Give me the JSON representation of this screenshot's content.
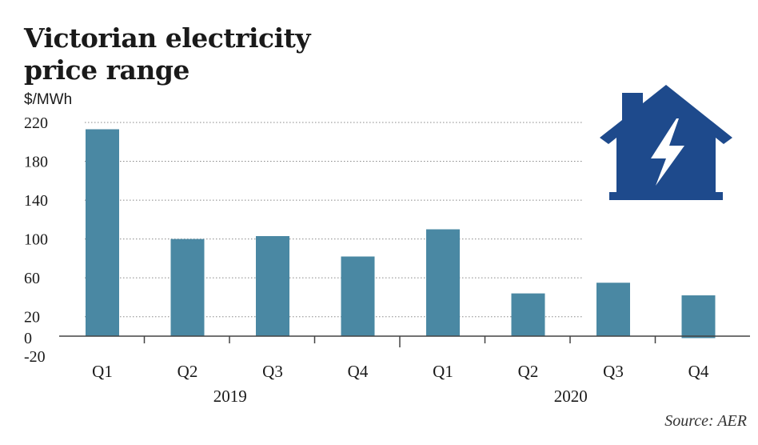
{
  "chart_data": {
    "type": "bar",
    "title_lines": [
      "Victorian electricity",
      "price range"
    ],
    "ylabel": "$/MWh",
    "source": "Source: AER",
    "categories": [
      "Q1",
      "Q2",
      "Q3",
      "Q4",
      "Q1",
      "Q2",
      "Q3",
      "Q4"
    ],
    "groups": [
      {
        "label": "2019",
        "start": 0,
        "end": 3
      },
      {
        "label": "2020",
        "start": 4,
        "end": 7
      }
    ],
    "values": [
      213,
      100,
      103,
      82,
      110,
      44,
      55,
      42
    ],
    "negative_extent": [
      0,
      0,
      0,
      0,
      0,
      0,
      0,
      -2
    ],
    "yticks": [
      220,
      180,
      140,
      100,
      60,
      20,
      0,
      -20
    ],
    "ylim": [
      -20,
      220
    ],
    "grid": true,
    "bar_color": "#4a88a3",
    "icon": "house-lightning-icon",
    "icon_color": "#1e4a8c"
  }
}
